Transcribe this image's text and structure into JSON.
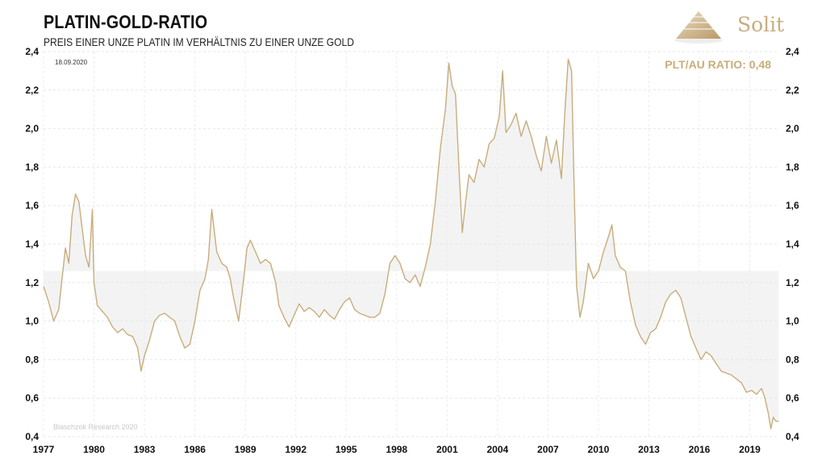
{
  "header": {
    "title": "PLATIN-GOLD-RATIO",
    "subtitle": "PREIS EINER UNZE PLATIN IM VERHÄLTNIS ZU EINER UNZE GOLD"
  },
  "logo": {
    "text": "Solit",
    "icon": "pyramid-logo-icon"
  },
  "colors": {
    "line": "#c8ad7c",
    "band": "#f3f3f3",
    "annotation": "#c8ad7c",
    "watermark": "#cccccc"
  },
  "chart_data": {
    "type": "line",
    "title": "PLATIN-GOLD-RATIO",
    "subtitle": "PREIS EINER UNZE PLATIN IM VERHÄLTNIS ZU EINER UNZE GOLD",
    "date_label": "18.09.2020",
    "current_label": "PLT/AU RATIO: 0,48",
    "watermark": "Blaschzok Research 2020",
    "xlim": [
      1977.0,
      2020.75
    ],
    "ylim": [
      0.4,
      2.4
    ],
    "x_ticks": [
      "1977",
      "1980",
      "1983",
      "1986",
      "1989",
      "1992",
      "1995",
      "1998",
      "2001",
      "2004",
      "2007",
      "2010",
      "2013",
      "2016",
      "2019"
    ],
    "y_ticks": [
      "2,4",
      "2,2",
      "2,0",
      "1,8",
      "1,6",
      "1,4",
      "1,2",
      "1,0",
      "0,8",
      "0,6",
      "0,4"
    ],
    "mean_level": 1.26,
    "grid": true,
    "series": [
      {
        "points": [
          [
            1977.0,
            1.18
          ],
          [
            1977.3,
            1.1
          ],
          [
            1977.6,
            1.0
          ],
          [
            1977.9,
            1.06
          ],
          [
            1978.1,
            1.22
          ],
          [
            1978.3,
            1.38
          ],
          [
            1978.5,
            1.3
          ],
          [
            1978.7,
            1.55
          ],
          [
            1978.9,
            1.66
          ],
          [
            1979.1,
            1.62
          ],
          [
            1979.3,
            1.48
          ],
          [
            1979.5,
            1.34
          ],
          [
            1979.7,
            1.28
          ],
          [
            1979.9,
            1.58
          ],
          [
            1980.0,
            1.2
          ],
          [
            1980.2,
            1.08
          ],
          [
            1980.5,
            1.05
          ],
          [
            1980.8,
            1.02
          ],
          [
            1981.1,
            0.97
          ],
          [
            1981.4,
            0.94
          ],
          [
            1981.7,
            0.96
          ],
          [
            1982.0,
            0.93
          ],
          [
            1982.3,
            0.92
          ],
          [
            1982.6,
            0.86
          ],
          [
            1982.8,
            0.74
          ],
          [
            1983.0,
            0.82
          ],
          [
            1983.3,
            0.9
          ],
          [
            1983.6,
            1.0
          ],
          [
            1983.9,
            1.03
          ],
          [
            1984.2,
            1.04
          ],
          [
            1984.5,
            1.02
          ],
          [
            1984.8,
            1.0
          ],
          [
            1985.1,
            0.92
          ],
          [
            1985.4,
            0.86
          ],
          [
            1985.7,
            0.88
          ],
          [
            1986.0,
            1.0
          ],
          [
            1986.3,
            1.16
          ],
          [
            1986.6,
            1.22
          ],
          [
            1986.8,
            1.32
          ],
          [
            1987.0,
            1.58
          ],
          [
            1987.3,
            1.36
          ],
          [
            1987.6,
            1.3
          ],
          [
            1987.9,
            1.28
          ],
          [
            1988.1,
            1.22
          ],
          [
            1988.3,
            1.12
          ],
          [
            1988.6,
            1.0
          ],
          [
            1988.9,
            1.22
          ],
          [
            1989.1,
            1.38
          ],
          [
            1989.3,
            1.42
          ],
          [
            1989.6,
            1.36
          ],
          [
            1989.9,
            1.3
          ],
          [
            1990.2,
            1.32
          ],
          [
            1990.5,
            1.3
          ],
          [
            1990.8,
            1.2
          ],
          [
            1991.0,
            1.08
          ],
          [
            1991.3,
            1.02
          ],
          [
            1991.6,
            0.97
          ],
          [
            1991.9,
            1.03
          ],
          [
            1992.2,
            1.09
          ],
          [
            1992.5,
            1.05
          ],
          [
            1992.8,
            1.07
          ],
          [
            1993.1,
            1.05
          ],
          [
            1993.4,
            1.02
          ],
          [
            1993.7,
            1.06
          ],
          [
            1994.0,
            1.03
          ],
          [
            1994.3,
            1.01
          ],
          [
            1994.6,
            1.06
          ],
          [
            1994.9,
            1.1
          ],
          [
            1995.2,
            1.12
          ],
          [
            1995.5,
            1.06
          ],
          [
            1995.8,
            1.04
          ],
          [
            1996.1,
            1.03
          ],
          [
            1996.4,
            1.02
          ],
          [
            1996.7,
            1.02
          ],
          [
            1997.0,
            1.04
          ],
          [
            1997.3,
            1.14
          ],
          [
            1997.6,
            1.3
          ],
          [
            1997.9,
            1.34
          ],
          [
            1998.2,
            1.3
          ],
          [
            1998.5,
            1.22
          ],
          [
            1998.8,
            1.2
          ],
          [
            1999.1,
            1.24
          ],
          [
            1999.4,
            1.18
          ],
          [
            1999.7,
            1.28
          ],
          [
            2000.0,
            1.4
          ],
          [
            2000.3,
            1.62
          ],
          [
            2000.6,
            1.9
          ],
          [
            2000.9,
            2.1
          ],
          [
            2001.1,
            2.34
          ],
          [
            2001.3,
            2.22
          ],
          [
            2001.5,
            2.18
          ],
          [
            2001.7,
            1.8
          ],
          [
            2001.9,
            1.46
          ],
          [
            2002.1,
            1.62
          ],
          [
            2002.3,
            1.76
          ],
          [
            2002.6,
            1.72
          ],
          [
            2002.9,
            1.84
          ],
          [
            2003.2,
            1.8
          ],
          [
            2003.5,
            1.92
          ],
          [
            2003.8,
            1.95
          ],
          [
            2004.1,
            2.06
          ],
          [
            2004.3,
            2.3
          ],
          [
            2004.5,
            1.98
          ],
          [
            2004.8,
            2.02
          ],
          [
            2005.1,
            2.08
          ],
          [
            2005.4,
            1.96
          ],
          [
            2005.7,
            2.04
          ],
          [
            2006.0,
            1.96
          ],
          [
            2006.3,
            1.86
          ],
          [
            2006.6,
            1.78
          ],
          [
            2006.9,
            1.96
          ],
          [
            2007.2,
            1.82
          ],
          [
            2007.5,
            1.94
          ],
          [
            2007.8,
            1.74
          ],
          [
            2008.0,
            2.08
          ],
          [
            2008.2,
            2.36
          ],
          [
            2008.4,
            2.3
          ],
          [
            2008.55,
            1.7
          ],
          [
            2008.7,
            1.18
          ],
          [
            2008.9,
            1.02
          ],
          [
            2009.1,
            1.1
          ],
          [
            2009.4,
            1.3
          ],
          [
            2009.7,
            1.22
          ],
          [
            2010.0,
            1.26
          ],
          [
            2010.3,
            1.36
          ],
          [
            2010.6,
            1.44
          ],
          [
            2010.8,
            1.5
          ],
          [
            2011.0,
            1.34
          ],
          [
            2011.3,
            1.28
          ],
          [
            2011.6,
            1.26
          ],
          [
            2011.9,
            1.1
          ],
          [
            2012.2,
            0.98
          ],
          [
            2012.5,
            0.92
          ],
          [
            2012.8,
            0.88
          ],
          [
            2013.1,
            0.94
          ],
          [
            2013.4,
            0.96
          ],
          [
            2013.7,
            1.02
          ],
          [
            2014.0,
            1.1
          ],
          [
            2014.3,
            1.14
          ],
          [
            2014.6,
            1.16
          ],
          [
            2014.9,
            1.12
          ],
          [
            2015.2,
            1.02
          ],
          [
            2015.5,
            0.92
          ],
          [
            2015.8,
            0.86
          ],
          [
            2016.1,
            0.8
          ],
          [
            2016.4,
            0.84
          ],
          [
            2016.7,
            0.82
          ],
          [
            2017.0,
            0.78
          ],
          [
            2017.3,
            0.74
          ],
          [
            2017.6,
            0.73
          ],
          [
            2017.9,
            0.72
          ],
          [
            2018.2,
            0.7
          ],
          [
            2018.5,
            0.68
          ],
          [
            2018.8,
            0.63
          ],
          [
            2019.1,
            0.64
          ],
          [
            2019.4,
            0.62
          ],
          [
            2019.7,
            0.65
          ],
          [
            2019.9,
            0.6
          ],
          [
            2020.1,
            0.52
          ],
          [
            2020.25,
            0.44
          ],
          [
            2020.4,
            0.5
          ],
          [
            2020.55,
            0.48
          ],
          [
            2020.72,
            0.48
          ]
        ]
      }
    ]
  }
}
